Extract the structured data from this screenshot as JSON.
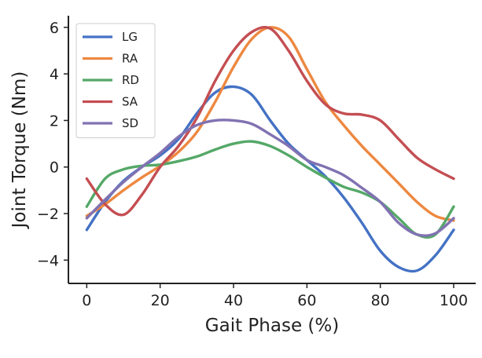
{
  "chart_data": {
    "type": "line",
    "title": "",
    "xlabel": "Gait Phase (%)",
    "ylabel": "Joint Torque (Nm)",
    "xlim": [
      -5,
      106
    ],
    "ylim": [
      -5.0,
      6.5
    ],
    "x_ticks": [
      0,
      20,
      40,
      60,
      80,
      100
    ],
    "y_ticks": [
      -4,
      -2,
      0,
      2,
      4,
      6
    ],
    "x_tick_labels": [
      "0",
      "20",
      "40",
      "60",
      "80",
      "100"
    ],
    "y_tick_labels": [
      "−4",
      "−2",
      "0",
      "2",
      "4",
      "6"
    ],
    "grid": false,
    "legend_position": "top-left",
    "x": [
      0,
      5,
      10,
      15,
      20,
      25,
      30,
      35,
      40,
      45,
      50,
      55,
      60,
      65,
      70,
      75,
      80,
      85,
      90,
      95,
      100
    ],
    "series": [
      {
        "name": "LG",
        "color": "#4472c4",
        "values": [
          -2.7,
          -1.5,
          -0.6,
          0.0,
          0.5,
          1.2,
          2.3,
          3.2,
          3.45,
          3.1,
          2.0,
          1.0,
          0.3,
          -0.4,
          -1.3,
          -2.4,
          -3.6,
          -4.3,
          -4.45,
          -3.8,
          -2.7
        ]
      },
      {
        "name": "RA",
        "color": "#ed8840",
        "values": [
          -2.1,
          -1.6,
          -1.0,
          -0.45,
          0.05,
          0.65,
          1.5,
          2.8,
          4.3,
          5.5,
          6.0,
          5.6,
          4.2,
          2.8,
          1.8,
          0.9,
          0.1,
          -0.7,
          -1.5,
          -2.1,
          -2.3
        ]
      },
      {
        "name": "RD",
        "color": "#55a868",
        "values": [
          -1.7,
          -0.5,
          -0.1,
          0.05,
          0.1,
          0.25,
          0.45,
          0.75,
          1.0,
          1.1,
          0.9,
          0.5,
          0.0,
          -0.45,
          -0.85,
          -1.1,
          -1.5,
          -2.2,
          -2.9,
          -2.9,
          -1.7
        ]
      },
      {
        "name": "SA",
        "color": "#c44e52",
        "values": [
          -0.5,
          -1.6,
          -2.05,
          -1.2,
          0.0,
          0.9,
          2.1,
          3.7,
          5.0,
          5.8,
          5.95,
          5.0,
          3.7,
          2.7,
          2.3,
          2.25,
          2.0,
          1.2,
          0.4,
          -0.1,
          -0.5
        ]
      },
      {
        "name": "SD",
        "color": "#8172b2",
        "values": [
          -2.2,
          -1.4,
          -0.65,
          0.0,
          0.6,
          1.3,
          1.8,
          2.0,
          2.0,
          1.85,
          1.4,
          0.9,
          0.3,
          0.0,
          -0.35,
          -0.9,
          -1.5,
          -2.4,
          -2.9,
          -2.85,
          -2.2
        ]
      }
    ]
  }
}
